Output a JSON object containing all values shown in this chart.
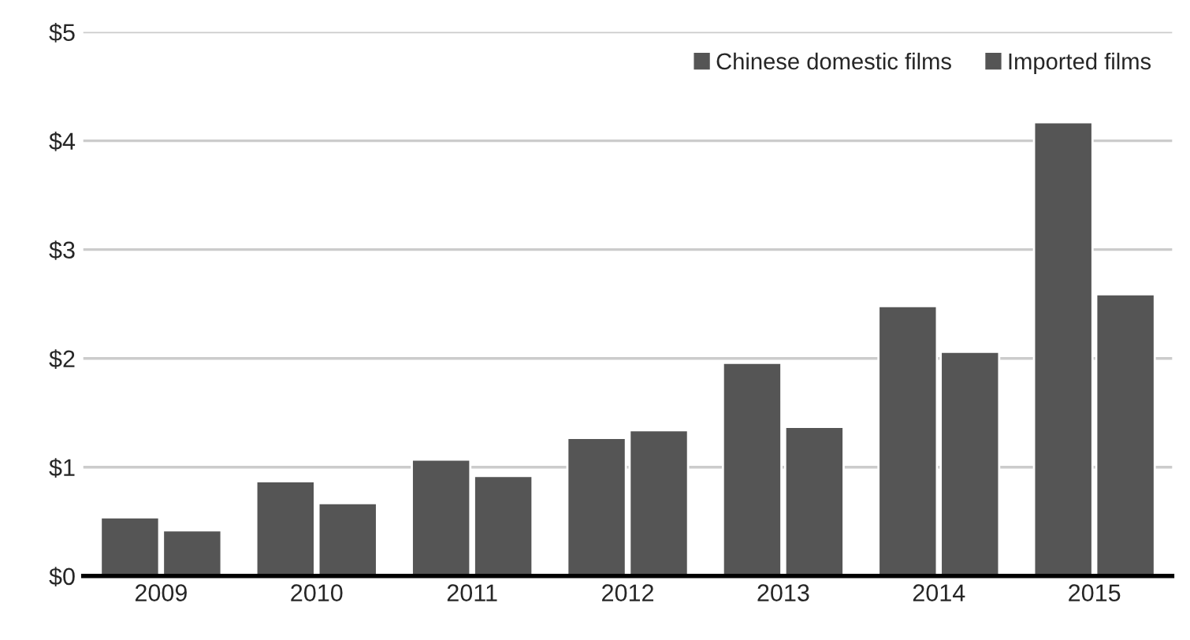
{
  "chart_data": {
    "type": "bar",
    "categories": [
      "2009",
      "2010",
      "2011",
      "2012",
      "2013",
      "2014",
      "2015"
    ],
    "series": [
      {
        "name": "Chinese domestic films",
        "color": "#555555",
        "values": [
          0.54,
          0.87,
          1.07,
          1.27,
          1.96,
          2.48,
          4.17
        ]
      },
      {
        "name": "Imported films",
        "color": "#555555",
        "values": [
          0.42,
          0.67,
          0.92,
          1.34,
          1.37,
          2.06,
          2.59
        ]
      }
    ],
    "ylim": [
      0,
      5
    ],
    "yticks": [
      {
        "value": 0,
        "label": "$0"
      },
      {
        "value": 1,
        "label": "$1"
      },
      {
        "value": 2,
        "label": "$2"
      },
      {
        "value": 3,
        "label": "$3"
      },
      {
        "value": 4,
        "label": "$4"
      },
      {
        "value": 5,
        "label": "$5"
      }
    ],
    "grid": "y",
    "legend": "top right"
  }
}
